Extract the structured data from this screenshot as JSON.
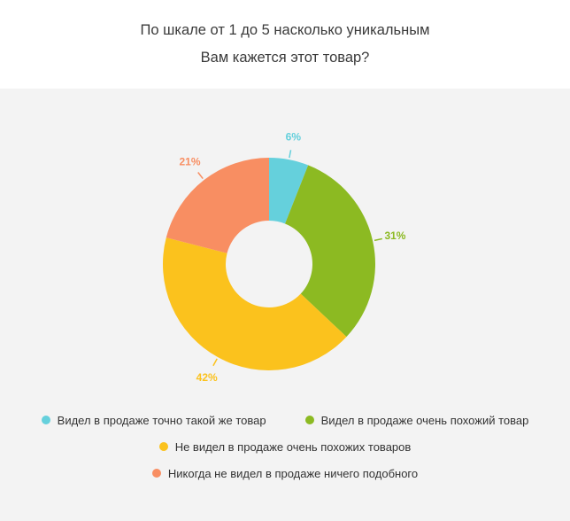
{
  "title_lines": [
    "По шкале от 1 до 5 насколько уникальным",
    "Вам кажется этот товар?"
  ],
  "chart_data": {
    "type": "pie",
    "donut": true,
    "categories": [
      "Видел в продаже точно такой же товар",
      "Видел в продаже очень похожий товар",
      "Не видел в продаже очень похожих товаров",
      "Никогда не видел в продаже ничего подобного"
    ],
    "values": [
      6,
      31,
      42,
      21
    ],
    "value_labels": [
      "6%",
      "31%",
      "42%",
      "21%"
    ],
    "colors": [
      "#65d0dc",
      "#8cba22",
      "#fbc21d",
      "#f88e62"
    ],
    "legend_position": "bottom"
  }
}
